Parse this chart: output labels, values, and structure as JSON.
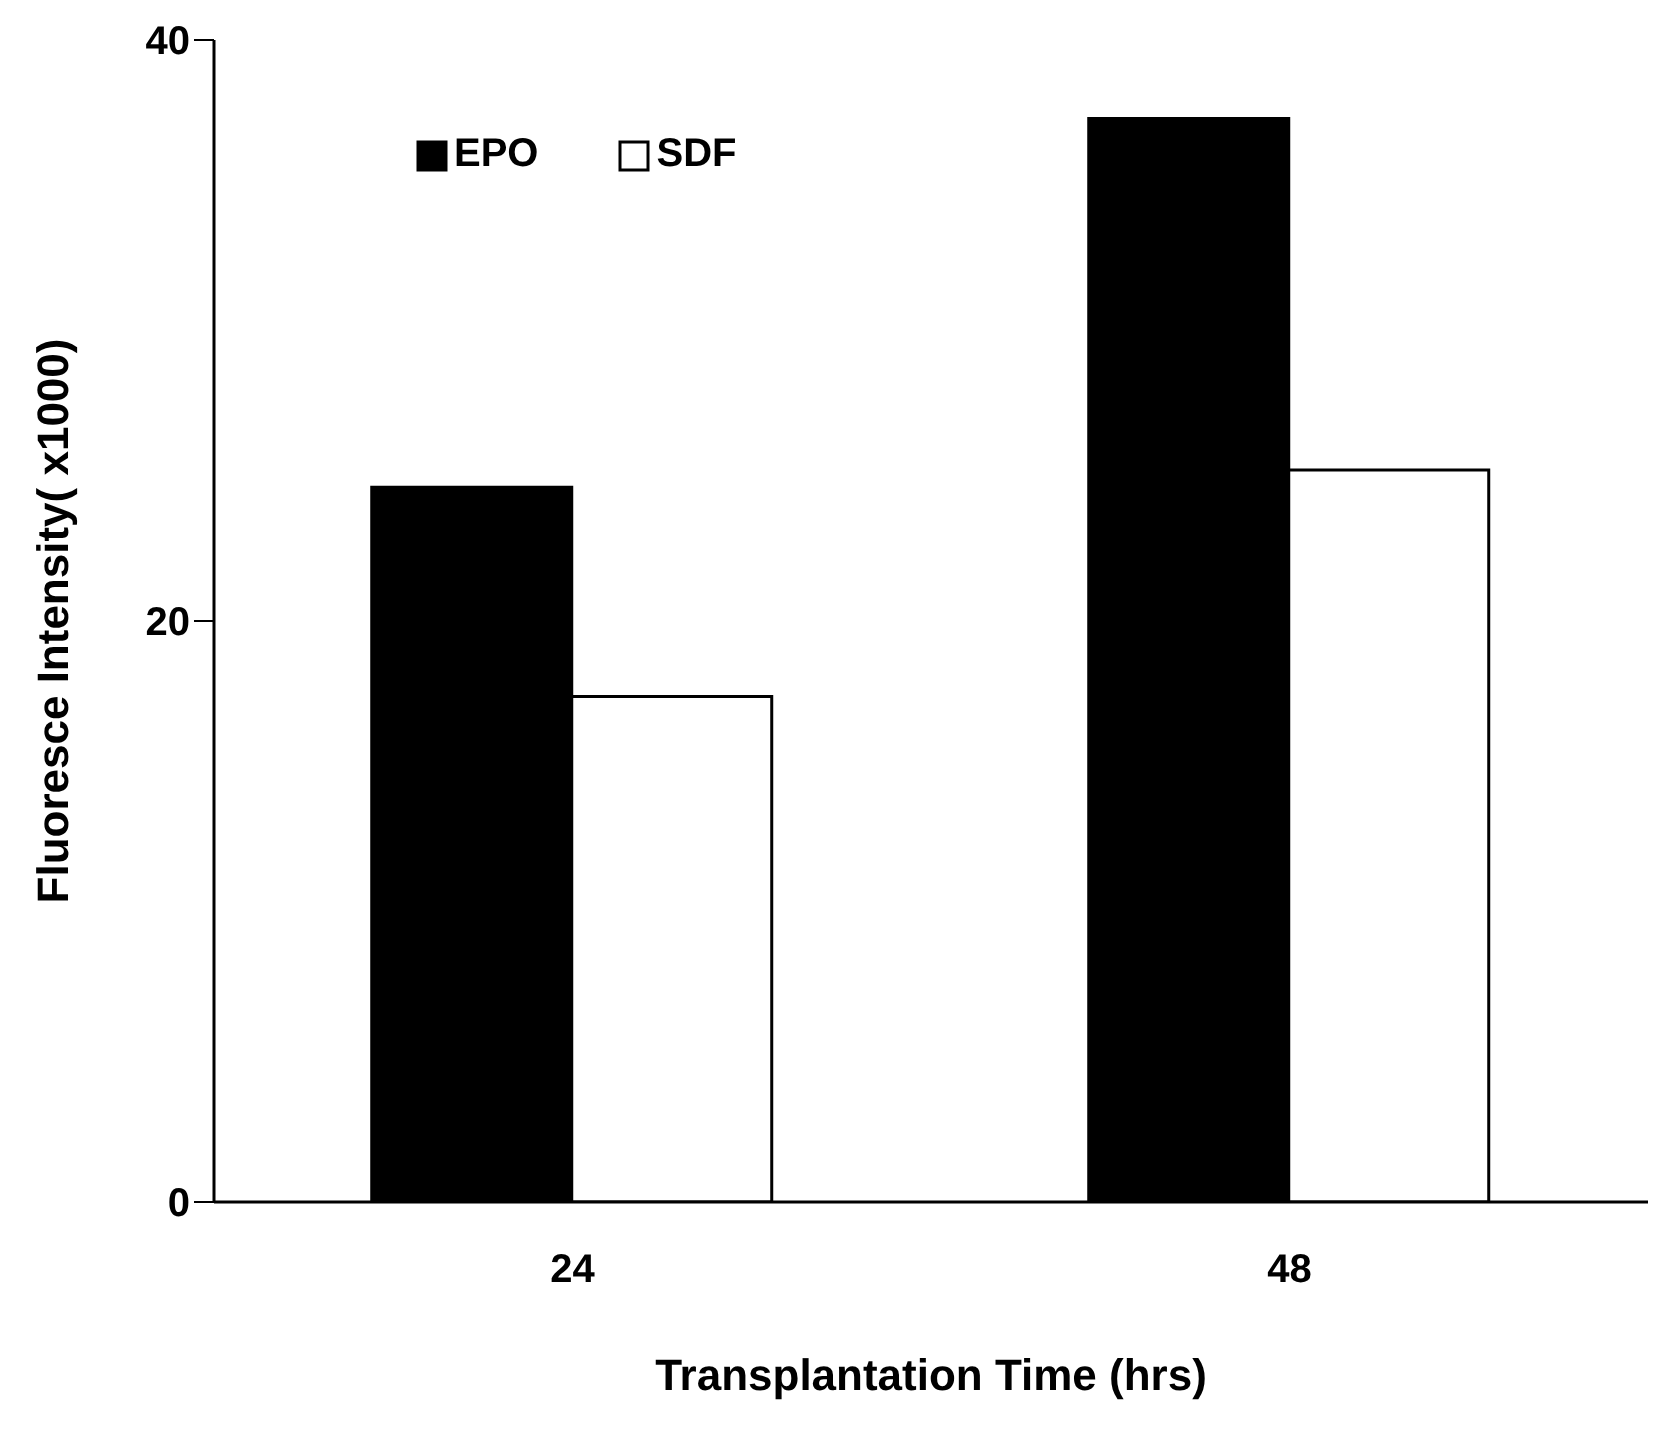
{
  "chart_data": {
    "type": "bar",
    "xlabel": "Transplantation Time (hrs)",
    "ylabel": "Fluoresce Intensity( x1000)",
    "categories": [
      "24",
      "48"
    ],
    "series": [
      {
        "name": "EPO",
        "color": "#000000",
        "values": [
          24.6,
          37.3
        ]
      },
      {
        "name": "SDF",
        "color": "#ffffff",
        "values": [
          17.4,
          25.2
        ]
      }
    ],
    "ylim": [
      0,
      40
    ],
    "yticks": [
      0,
      20,
      40
    ],
    "grid": false,
    "legend": "top left"
  }
}
